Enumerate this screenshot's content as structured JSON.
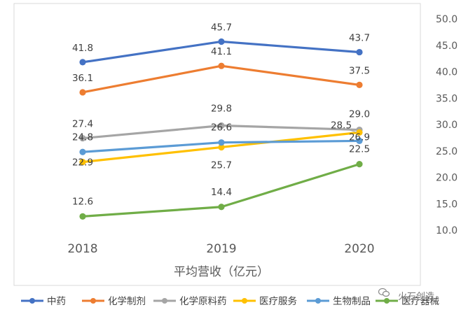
{
  "chart_data": {
    "type": "line",
    "x": [
      "2018",
      "2019",
      "2020"
    ],
    "xlabel": "平均营收（亿元）",
    "ylim": [
      10.0,
      50.0
    ],
    "yticks": [
      "10.0",
      "15.0",
      "20.0",
      "25.0",
      "30.0",
      "35.0",
      "40.0",
      "45.0",
      "50.0"
    ],
    "y_axis_side": "right",
    "legend_position": "bottom",
    "grid": false,
    "series": [
      {
        "name": "中药",
        "color": "#4472C4",
        "values": [
          41.8,
          45.7,
          43.7
        ],
        "labels": [
          "41.8",
          "45.7",
          "43.7"
        ]
      },
      {
        "name": "化学制剂",
        "color": "#ED7D31",
        "values": [
          36.1,
          41.1,
          37.5
        ],
        "labels": [
          "36.1",
          "41.1",
          "37.5"
        ]
      },
      {
        "name": "化学原料药",
        "color": "#A5A5A5",
        "values": [
          27.4,
          29.8,
          29.0
        ],
        "labels": [
          "27.4",
          "29.8",
          "29.0"
        ]
      },
      {
        "name": "医疗服务",
        "color": "#FFC000",
        "values": [
          22.9,
          25.7,
          28.5
        ],
        "labels": [
          "22.9",
          "25.7",
          "28.5"
        ]
      },
      {
        "name": "生物制品",
        "color": "#5B9BD5",
        "values": [
          24.8,
          26.6,
          26.9
        ],
        "labels": [
          "24.8",
          "26.6",
          "26.9"
        ]
      },
      {
        "name": "医疗器械",
        "color": "#70AD47",
        "values": [
          12.6,
          14.4,
          22.5
        ],
        "labels": [
          "12.6",
          "14.4",
          "22.5"
        ]
      }
    ]
  },
  "watermark": "火石创造"
}
